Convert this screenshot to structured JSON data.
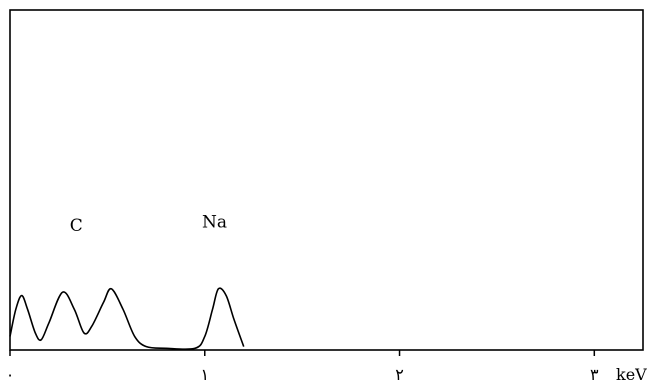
{
  "chart_data": {
    "type": "line",
    "xlabel": "",
    "ylabel": "",
    "xlim": [
      0,
      3.25
    ],
    "ylim": [
      0,
      100
    ],
    "grid": false,
    "x_ticks": [
      {
        "value": 0,
        "label": "٠"
      },
      {
        "value": 1,
        "label": "١"
      },
      {
        "value": 2,
        "label": "٢"
      },
      {
        "value": 3,
        "label": "٣"
      }
    ],
    "x_unit": "keV",
    "series": [
      {
        "values": [
          [
            0.0,
            4
          ],
          [
            0.03,
            12
          ],
          [
            0.06,
            16
          ],
          [
            0.09,
            12
          ],
          [
            0.13,
            5
          ],
          [
            0.16,
            3
          ],
          [
            0.2,
            8
          ],
          [
            0.27,
            17
          ],
          [
            0.33,
            12
          ],
          [
            0.38,
            5
          ],
          [
            0.42,
            7
          ],
          [
            0.48,
            14
          ],
          [
            0.52,
            18
          ],
          [
            0.58,
            12
          ],
          [
            0.64,
            4
          ],
          [
            0.7,
            1
          ],
          [
            0.8,
            0.5
          ],
          [
            0.95,
            0.5
          ],
          [
            1.0,
            4
          ],
          [
            1.04,
            12
          ],
          [
            1.07,
            18
          ],
          [
            1.11,
            16
          ],
          [
            1.15,
            9
          ],
          [
            1.2,
            1
          ]
        ]
      }
    ],
    "annotations": [
      {
        "text": "C",
        "x": 0.34,
        "y": 35
      },
      {
        "text": "Na",
        "x": 1.05,
        "y": 36
      }
    ]
  }
}
